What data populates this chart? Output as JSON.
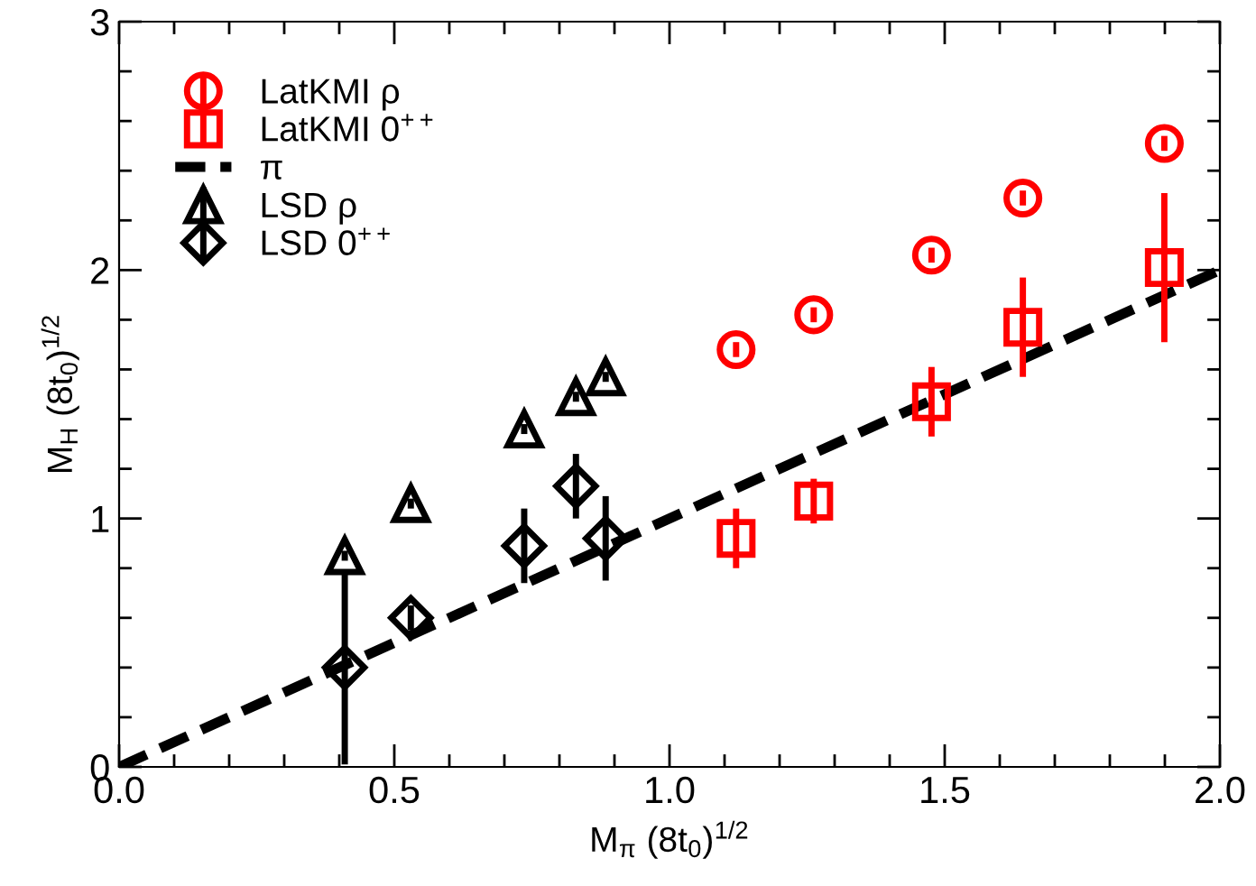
{
  "chart_data": {
    "type": "scatter",
    "xlabel": "M$_{π}$ (8t$_{0}$)$^{1/2}$",
    "ylabel": "M$_{H}$ (8t$_{0}$)$^{1/2}$",
    "xlim": [
      0,
      2
    ],
    "ylim": [
      0,
      3
    ],
    "xticks": [
      {
        "value": 0,
        "label": "0.0"
      },
      0.5,
      {
        "value": 1,
        "label": "1.0"
      },
      1.5,
      {
        "value": 2,
        "label": "2.0"
      }
    ],
    "yticks": [
      0,
      1,
      2,
      3
    ],
    "grid": false,
    "legend": "top left",
    "series": [
      {
        "name": "LatKMI ρ",
        "color": "#ff0000",
        "marker": "circle",
        "x": [
          1.121,
          1.262,
          1.476,
          1.642,
          1.899
        ],
        "values": [
          1.68,
          1.82,
          2.06,
          2.29,
          2.51
        ],
        "errors": [
          0.03,
          0.03,
          0.03,
          0.03,
          0.03
        ]
      },
      {
        "name": "LatKMI 0$^{++}$",
        "color": "#ff0000",
        "marker": "square",
        "x": [
          1.121,
          1.262,
          1.476,
          1.642,
          1.899
        ],
        "values": [
          0.92,
          1.07,
          1.47,
          1.77,
          2.01
        ],
        "errors": [
          0.12,
          0.09,
          0.14,
          0.2,
          0.3
        ]
      },
      {
        "name": "π",
        "type": "line",
        "color": "#000000",
        "marker": "none",
        "line_style": "dashed",
        "x": [
          0,
          2
        ],
        "values": [
          0,
          2
        ]
      },
      {
        "name": "LSD ρ",
        "color": "#000000",
        "marker": "triangle",
        "x": [
          0.41,
          0.53,
          0.736,
          0.83,
          0.884
        ],
        "values": [
          0.85,
          1.06,
          1.36,
          1.49,
          1.57
        ],
        "errors": [
          0.02,
          0.02,
          0.02,
          0.02,
          0.02
        ]
      },
      {
        "name": "LSD 0$^{++}$",
        "color": "#000000",
        "marker": "diamond",
        "x": [
          0.41,
          0.53,
          0.736,
          0.83,
          0.884
        ],
        "values": [
          0.4,
          0.6,
          0.89,
          1.13,
          0.92
        ],
        "errors": [
          0.39,
          0.05,
          0.15,
          0.13,
          0.17
        ]
      }
    ]
  }
}
